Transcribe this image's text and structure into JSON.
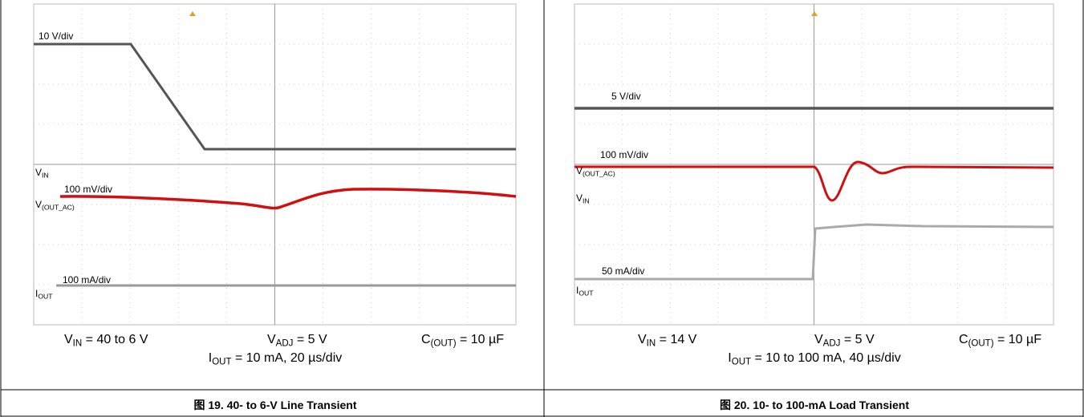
{
  "figures": [
    {
      "traces": [
        {
          "scale": "10 V/div",
          "name": {
            "base": "V",
            "sub": "IN"
          }
        },
        {
          "scale": "100 mV/div",
          "name": {
            "base": "V",
            "sub": "(OUT_AC)"
          }
        },
        {
          "scale": "100 mA/div",
          "name": {
            "base": "I",
            "sub": "OUT"
          }
        }
      ],
      "conditions": [
        {
          "base": "V",
          "sub": "IN",
          "text": " = 40 to 6 V"
        },
        {
          "base": "V",
          "sub": "ADJ",
          "text": " = 5 V"
        },
        {
          "base": "C",
          "sub": "(OUT)",
          "text": " = 10 µF"
        },
        {
          "base": "I",
          "sub": "OUT",
          "text": " = 10 mA, 20 µs/div"
        }
      ],
      "caption": "图 19. 40- to 6-V Line Transient"
    },
    {
      "traces": [
        {
          "scale": "5 V/div",
          "name": {
            "base": "V",
            "sub": "IN"
          }
        },
        {
          "scale": "100 mV/div",
          "name": {
            "base": "V",
            "sub": "(OUT_AC)"
          }
        },
        {
          "scale": "50 mA/div",
          "name": {
            "base": "I",
            "sub": "OUT"
          }
        }
      ],
      "conditions": [
        {
          "base": "V",
          "sub": "IN",
          "text": " = 14 V"
        },
        {
          "base": "V",
          "sub": "ADJ",
          "text": " = 5 V"
        },
        {
          "base": "C",
          "sub": "(OUT)",
          "text": " = 10 µF"
        },
        {
          "base": "I",
          "sub": "OUT",
          "text": " = 10 to 100 mA, 40 µs/div"
        }
      ],
      "caption": "图 20. 10- to 100-mA Load Transient"
    }
  ]
}
